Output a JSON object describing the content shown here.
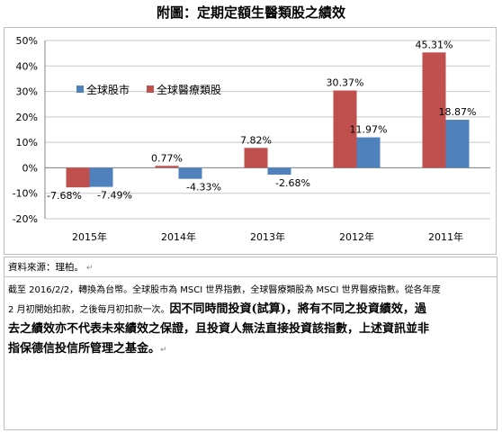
{
  "title": "附圖：定期定額生醫類股之績效",
  "chart_data": {
    "type": "bar",
    "categories": [
      "2015年",
      "2014年",
      "2013年",
      "2012年",
      "2011年"
    ],
    "series": [
      {
        "name": "全球醫療類股",
        "color": "#c0504d",
        "values": [
          -7.68,
          0.77,
          7.82,
          30.37,
          45.31
        ],
        "labels": [
          "-7.68%",
          "0.77%",
          "7.82%",
          "30.37%",
          "45.31%"
        ]
      },
      {
        "name": "全球股市",
        "color": "#4f81bd",
        "values": [
          -7.49,
          -4.33,
          -2.68,
          11.97,
          18.87
        ],
        "labels": [
          "-7.49%",
          "-4.33%",
          "-2.68%",
          "11.97%",
          "18.87%"
        ]
      }
    ],
    "legend": [
      "全球股市",
      "全球醫療類股"
    ],
    "yticks": [
      "50%",
      "40%",
      "30%",
      "20%",
      "10%",
      "0%",
      "-10%",
      "-20%"
    ],
    "ylim": [
      -20,
      50
    ],
    "grid": true,
    "legend_position": "top-left"
  },
  "notes": {
    "source": "資料來源：理柏。",
    "line1": "截至 2016/2/2，轉換為台幣。全球股市為 MSCI 世界指數，全球醫療類股為 MSCI 世界醫療指數。從各年度",
    "line2": "2 月初開始扣款，之後每月初扣款一次。",
    "bold1": "因不同時間投資(試算)，將有不同之投資績效，過",
    "bold2": "去之績效亦不代表未來績效之保證，且投資人無法直接投資該指數，上述資訊並非",
    "bold3": "指保德信投信所管理之基金。"
  }
}
